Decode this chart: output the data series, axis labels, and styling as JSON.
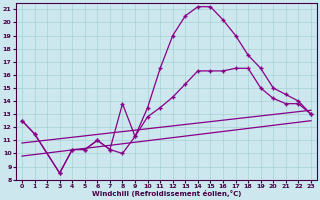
{
  "xlabel": "Windchill (Refroidissement éolien,°C)",
  "bg_color": "#cce8ee",
  "line_color": "#880088",
  "marker": "+",
  "xlim": [
    -0.5,
    23.5
  ],
  "ylim": [
    8,
    21.5
  ],
  "xticks": [
    0,
    1,
    2,
    3,
    4,
    5,
    6,
    7,
    8,
    9,
    10,
    11,
    12,
    13,
    14,
    15,
    16,
    17,
    18,
    19,
    20,
    21,
    22,
    23
  ],
  "yticks": [
    8,
    9,
    10,
    11,
    12,
    13,
    14,
    15,
    16,
    17,
    18,
    19,
    20,
    21
  ],
  "curve1_x": [
    0,
    1,
    3,
    4,
    5,
    6,
    7,
    8,
    9,
    10,
    11,
    12,
    13,
    14,
    15,
    16,
    17,
    18,
    19,
    20,
    21,
    22,
    23
  ],
  "curve1_y": [
    12.5,
    11.5,
    8.5,
    10.3,
    10.3,
    11.0,
    10.3,
    10.0,
    11.3,
    13.5,
    16.5,
    19.0,
    20.5,
    21.2,
    21.2,
    20.2,
    19.0,
    17.5,
    16.5,
    15.0,
    14.5,
    14.0,
    13.0
  ],
  "curve2_x": [
    0,
    1,
    3,
    4,
    5,
    6,
    7,
    8,
    9,
    10,
    11,
    12,
    13,
    14,
    15,
    16,
    17,
    18,
    19,
    20,
    21,
    22,
    23
  ],
  "curve2_y": [
    12.5,
    11.5,
    8.5,
    10.3,
    10.3,
    11.0,
    10.3,
    13.8,
    11.3,
    12.8,
    13.5,
    14.3,
    15.3,
    16.3,
    16.3,
    16.3,
    16.5,
    16.5,
    15.0,
    14.2,
    13.8,
    13.8,
    13.0
  ],
  "line3_x": [
    0,
    23
  ],
  "line3_y": [
    10.8,
    13.3
  ],
  "line4_x": [
    0,
    23
  ],
  "line4_y": [
    9.8,
    12.5
  ]
}
